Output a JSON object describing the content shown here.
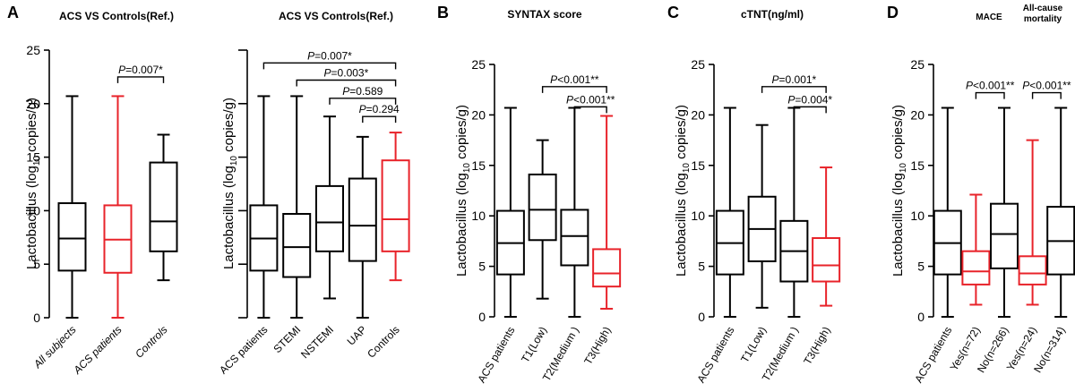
{
  "colors": {
    "normal": "#000000",
    "highlight": "#e8232a"
  },
  "ylabel_main": "Lactobacillus (log",
  "ylabel_sub": "10",
  "ylabel_tail": " copies/g)",
  "chart_data": [
    {
      "id": "A1",
      "type": "boxplot",
      "letter": "A",
      "title": "ACS VS Controls(Ref.)",
      "ylim": [
        0,
        25
      ],
      "yticks": [
        0,
        5,
        10,
        15,
        20,
        25
      ],
      "show_tick_labels": true,
      "categories": [
        "All subjects",
        "ACS patients",
        "Controls"
      ],
      "italic_categories": true,
      "boxes": [
        {
          "min": 0,
          "q1": 4.4,
          "median": 7.4,
          "q3": 10.7,
          "max": 20.7,
          "highlight": false
        },
        {
          "min": 0,
          "q1": 4.2,
          "median": 7.3,
          "q3": 10.5,
          "max": 20.7,
          "highlight": true
        },
        {
          "min": 3.5,
          "q1": 6.2,
          "median": 9.0,
          "q3": 14.5,
          "max": 17.1,
          "highlight": false
        }
      ],
      "comparisons": [
        {
          "from": 1,
          "to": 2,
          "level": 22.5,
          "p": "=0.007*"
        }
      ]
    },
    {
      "id": "A2",
      "type": "boxplot",
      "letter": "",
      "title": "ACS VS Controls(Ref.)",
      "ylim": [
        0,
        25
      ],
      "yticks": [
        0,
        5,
        10,
        15,
        20,
        25
      ],
      "show_tick_labels": false,
      "categories": [
        "ACS patients",
        "STEMI",
        "NSTEMI",
        "UAP",
        "Controls"
      ],
      "italic_categories": false,
      "boxes": [
        {
          "min": 0,
          "q1": 4.4,
          "median": 7.4,
          "q3": 10.5,
          "max": 20.7,
          "highlight": false
        },
        {
          "min": 0,
          "q1": 3.8,
          "median": 6.6,
          "q3": 9.7,
          "max": 20.7,
          "highlight": false
        },
        {
          "min": 1.8,
          "q1": 6.2,
          "median": 8.9,
          "q3": 12.3,
          "max": 18.8,
          "highlight": false
        },
        {
          "min": 0,
          "q1": 5.3,
          "median": 8.6,
          "q3": 13.0,
          "max": 16.9,
          "highlight": false
        },
        {
          "min": 3.5,
          "q1": 6.2,
          "median": 9.2,
          "q3": 14.7,
          "max": 17.3,
          "highlight": true
        }
      ],
      "comparisons": [
        {
          "from": 0,
          "to": 4,
          "level": 23.8,
          "p": "=0.007*"
        },
        {
          "from": 1,
          "to": 4,
          "level": 22.2,
          "p": "=0.003*"
        },
        {
          "from": 2,
          "to": 4,
          "level": 20.5,
          "p": "=0.589"
        },
        {
          "from": 3,
          "to": 4,
          "level": 18.8,
          "p": "=0.294"
        }
      ]
    },
    {
      "id": "B",
      "type": "boxplot",
      "letter": "B",
      "title": "SYNTAX score",
      "ylim": [
        0,
        25
      ],
      "yticks": [
        0,
        5,
        10,
        15,
        20,
        25
      ],
      "show_tick_labels": true,
      "categories": [
        "ACS patients",
        "T1(Low)",
        "T2(Medium )",
        "T3(High)"
      ],
      "italic_categories": false,
      "boxes": [
        {
          "min": 0,
          "q1": 4.2,
          "median": 7.3,
          "q3": 10.5,
          "max": 20.7,
          "highlight": false
        },
        {
          "min": 1.8,
          "q1": 7.6,
          "median": 10.6,
          "q3": 14.1,
          "max": 17.5,
          "highlight": false
        },
        {
          "min": 0,
          "q1": 5.1,
          "median": 8.0,
          "q3": 10.6,
          "max": 20.7,
          "highlight": false
        },
        {
          "min": 0.8,
          "q1": 3.0,
          "median": 4.3,
          "q3": 6.7,
          "max": 19.9,
          "highlight": true
        }
      ],
      "comparisons": [
        {
          "from": 1,
          "to": 3,
          "level": 22.8,
          "p": "<0.001**"
        },
        {
          "from": 2,
          "to": 3,
          "level": 20.8,
          "p": "<0.001**"
        }
      ]
    },
    {
      "id": "C",
      "type": "boxplot",
      "letter": "C",
      "title": "cTNT(ng/ml)",
      "ylim": [
        0,
        25
      ],
      "yticks": [
        0,
        5,
        10,
        15,
        20,
        25
      ],
      "show_tick_labels": true,
      "categories": [
        "ACS patients",
        "T1(Low)",
        "T2(Medium )",
        "T3(High)"
      ],
      "italic_categories": false,
      "boxes": [
        {
          "min": 0,
          "q1": 4.2,
          "median": 7.3,
          "q3": 10.5,
          "max": 20.7,
          "highlight": false
        },
        {
          "min": 0.9,
          "q1": 5.5,
          "median": 8.7,
          "q3": 11.9,
          "max": 19.0,
          "highlight": false
        },
        {
          "min": 0,
          "q1": 3.5,
          "median": 6.5,
          "q3": 9.5,
          "max": 20.7,
          "highlight": false
        },
        {
          "min": 1.1,
          "q1": 3.5,
          "median": 5.1,
          "q3": 7.8,
          "max": 14.8,
          "highlight": true
        }
      ],
      "comparisons": [
        {
          "from": 1,
          "to": 3,
          "level": 22.8,
          "p": "=0.001*"
        },
        {
          "from": 2,
          "to": 3,
          "level": 20.8,
          "p": "=0.004*"
        }
      ]
    },
    {
      "id": "D",
      "type": "boxplot",
      "letter": "D",
      "title": "MACE",
      "title2_line1": "All-cause",
      "title2_line2": "mortality",
      "ylim": [
        0,
        25
      ],
      "yticks": [
        0,
        5,
        10,
        15,
        20,
        25
      ],
      "show_tick_labels": true,
      "categories": [
        "ACS patients",
        "Yes(n=72)",
        "No(n=266)",
        "Yes(n=24)",
        "No(n=314)"
      ],
      "italic_categories": false,
      "boxes": [
        {
          "min": 0,
          "q1": 4.2,
          "median": 7.3,
          "q3": 10.5,
          "max": 20.7,
          "highlight": false
        },
        {
          "min": 1.2,
          "q1": 3.2,
          "median": 4.5,
          "q3": 6.5,
          "max": 12.1,
          "highlight": true
        },
        {
          "min": 0,
          "q1": 4.8,
          "median": 8.2,
          "q3": 11.2,
          "max": 20.7,
          "highlight": false
        },
        {
          "min": 1.2,
          "q1": 3.2,
          "median": 4.3,
          "q3": 6.0,
          "max": 17.5,
          "highlight": true
        },
        {
          "min": 0,
          "q1": 4.2,
          "median": 7.5,
          "q3": 10.9,
          "max": 20.7,
          "highlight": false
        }
      ],
      "comparisons": [
        {
          "from": 1,
          "to": 2,
          "level": 22.2,
          "p": "<0.001**"
        },
        {
          "from": 3,
          "to": 4,
          "level": 22.2,
          "p": "<0.001**"
        }
      ]
    }
  ]
}
